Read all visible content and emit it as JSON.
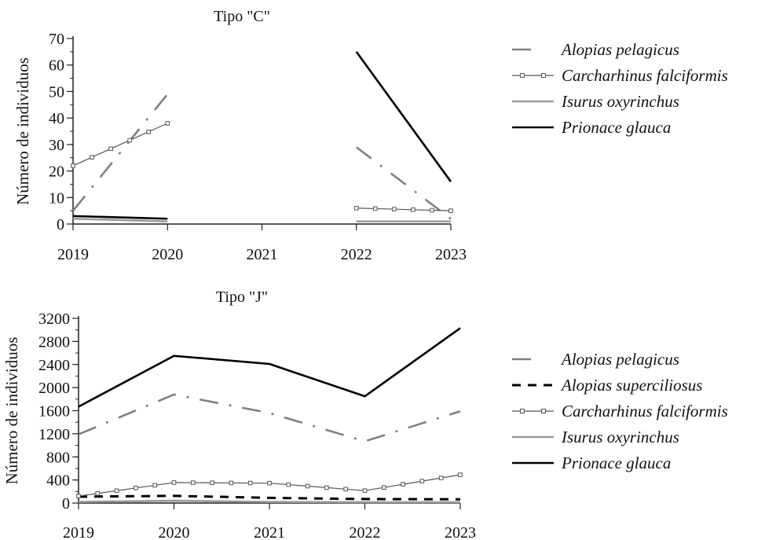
{
  "chart_data": [
    {
      "type": "line",
      "title": "Tipo \"C\"",
      "xlabel": "",
      "ylabel": "Número de individuos",
      "x": [
        2019,
        2020,
        2021,
        2022,
        2023
      ],
      "xlim": [
        2019,
        2023
      ],
      "ylim": [
        0,
        70
      ],
      "yticks": [
        0,
        10,
        20,
        30,
        40,
        50,
        60,
        70
      ],
      "legend_position": "right",
      "series": [
        {
          "name": "Alopias pelagicus",
          "color": "#808080",
          "style": "dash-dot",
          "values": [
            5,
            49,
            null,
            29,
            2
          ]
        },
        {
          "name": "Carcharhinus falciformis",
          "color": "#555555",
          "style": "square-markers",
          "values": [
            22,
            38,
            null,
            6,
            5
          ]
        },
        {
          "name": "Isurus oxyrinchus",
          "color": "#9a9a9a",
          "style": "solid",
          "values": [
            2,
            1,
            null,
            1,
            1
          ]
        },
        {
          "name": "Prionace glauca",
          "color": "#000000",
          "style": "solid-thick",
          "values": [
            3,
            2,
            null,
            65,
            16
          ]
        }
      ]
    },
    {
      "type": "line",
      "title": "Tipo \"J\"",
      "xlabel": "",
      "ylabel": "Número de individuos",
      "x": [
        2019,
        2020,
        2021,
        2022,
        2023
      ],
      "xlim": [
        2019,
        2023
      ],
      "ylim": [
        0,
        3200
      ],
      "yticks": [
        0,
        400,
        800,
        1200,
        1600,
        2000,
        2400,
        2800,
        3200
      ],
      "legend_position": "right",
      "series": [
        {
          "name": "Alopias pelagicus",
          "color": "#808080",
          "style": "dash-dot",
          "values": [
            1190,
            1880,
            1560,
            1070,
            1590
          ]
        },
        {
          "name": "Alopias superciliosus",
          "color": "#000000",
          "style": "dashed",
          "values": [
            110,
            125,
            90,
            70,
            65
          ]
        },
        {
          "name": "Carcharhinus falciformis",
          "color": "#555555",
          "style": "square-markers",
          "values": [
            120,
            355,
            345,
            215,
            490
          ]
        },
        {
          "name": "Isurus oxyrinchus",
          "color": "#9a9a9a",
          "style": "solid",
          "values": [
            20,
            40,
            20,
            15,
            15
          ]
        },
        {
          "name": "Prionace glauca",
          "color": "#000000",
          "style": "solid-thick",
          "values": [
            1670,
            2550,
            2410,
            1850,
            3030
          ]
        }
      ]
    }
  ]
}
